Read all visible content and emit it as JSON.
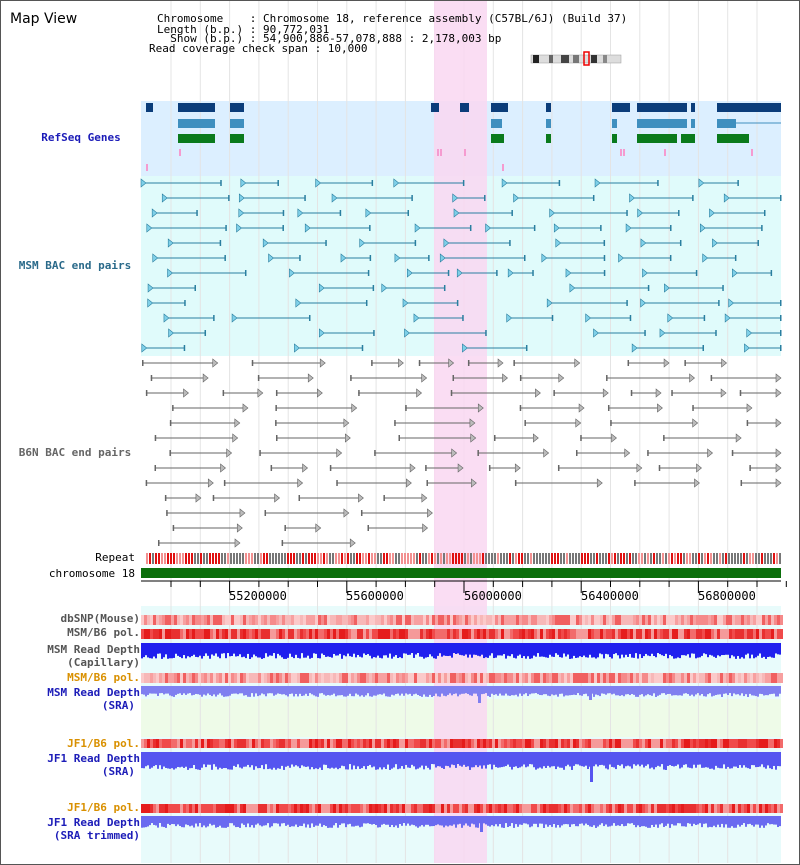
{
  "title": "Map View",
  "info": {
    "line1": "Chromosome    : Chromosome 18, reference assembly (C57BL/6J) (Build 37)",
    "line2": "Length (b.p.) : 90,772,031",
    "line3": "  Show (b.p.) : 54,900,886-57,078,888 : 2,178,003 bp",
    "line4": "Read coverage check span : 10,000"
  },
  "tracks": {
    "refseq": "RefSeq Genes",
    "msm_bac": "MSM BAC end pairs",
    "b6n_bac": "B6N BAC end pairs",
    "repeat": "Repeat",
    "chromosome": "chromosome 18",
    "dbsnp": "dbSNP(Mouse)",
    "msm_b6_pol": "MSM/B6 pol.",
    "msm_depth_cap_1": "MSM Read Depth",
    "msm_depth_cap_2": "(Capillary)",
    "msm_b6_pol2": "MSM/B6 pol.",
    "msm_depth_sra_1": "MSM Read Depth",
    "msm_depth_sra_2": "(SRA)",
    "jf1_b6_pol": "JF1/B6 pol.",
    "jf1_depth_sra_1": "JF1 Read Depth",
    "jf1_depth_sra_2": "(SRA)",
    "jf1_b6_pol2": "JF1/B6 pol.",
    "jf1_depth_trim_1": "JF1 Read Depth",
    "jf1_depth_trim_2": "(SRA trimmed)"
  },
  "axis": {
    "ticks": [
      "55200000",
      "55600000",
      "56000000",
      "56400000",
      "56800000"
    ]
  },
  "colors": {
    "refseq_bg": "#dcefff",
    "msm_bg": "#e0fbfb",
    "highlight": "#f9d7f1",
    "gene_dark": "#0b3d7a",
    "gene_mid": "#3f8fbf",
    "gene_green": "#0a7a1c",
    "bac_msm": "#2a7fa0",
    "bac_b6n": "#666666",
    "chrom_green": "#0b6e0b",
    "depth_blue": "#2020ee",
    "depth_light": "#7f7ff0",
    "label_navy": "#00008b",
    "label_orange": "#d99000"
  }
}
